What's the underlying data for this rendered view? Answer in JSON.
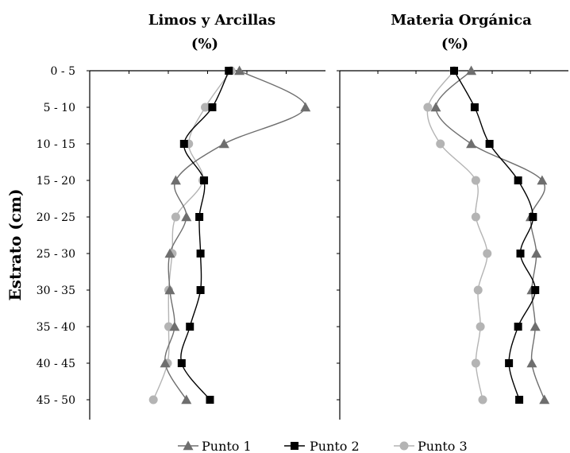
{
  "chart_data": {
    "type": "line",
    "ylabel": "Estrato  (cm)",
    "categories": [
      "0 - 5",
      "5 - 10",
      "10 - 15",
      "15 - 20",
      "20 - 25",
      "25 - 30",
      "30 - 35",
      "35 - 40",
      "40 - 45",
      "45 - 50"
    ],
    "legend": {
      "placement": "bottom",
      "entries": [
        "Punto 1",
        "Punto 2",
        "Punto 3"
      ]
    },
    "series_styles": [
      {
        "name": "Punto 1",
        "marker": "triangle",
        "color": "#6e6e6e"
      },
      {
        "name": "Punto 2",
        "marker": "square",
        "color": "#000000"
      },
      {
        "name": "Punto 3",
        "marker": "circle",
        "color": "#b4b4b4"
      }
    ],
    "panels": [
      {
        "title_line1": "Limos y Arcillas",
        "title_line2": "(%)",
        "xlim": [
          0,
          100
        ],
        "series": [
          {
            "name": "Punto 1",
            "values": [
              63.5,
              91.5,
              57,
              36.5,
              41,
              34,
              34,
              36,
              32,
              41
            ]
          },
          {
            "name": "Punto 2",
            "values": [
              59,
              52,
              40,
              48.5,
              46.5,
              47,
              47,
              42.5,
              39,
              51
            ]
          },
          {
            "name": "Punto 3",
            "values": [
              60,
              49,
              42,
              48,
              36.5,
              35,
              33.5,
              33.5,
              33,
              27
            ]
          }
        ]
      },
      {
        "title_line1": "Materia Orgánica",
        "title_line2": "(%)",
        "xlim": [
          0,
          100
        ],
        "series": [
          {
            "name": "Punto 1",
            "values": [
              57.5,
              42,
              57.5,
              88.5,
              83.5,
              86,
              84,
              85.5,
              84,
              89.5
            ]
          },
          {
            "name": "Punto 2",
            "values": [
              50,
              59,
              65.5,
              78,
              84.5,
              79,
              85.5,
              78,
              74,
              78.5
            ]
          },
          {
            "name": "Punto 3",
            "values": [
              50,
              38.5,
              44,
              59.5,
              59.5,
              64.5,
              60.5,
              61.5,
              59.5,
              62.5
            ]
          }
        ]
      }
    ]
  }
}
